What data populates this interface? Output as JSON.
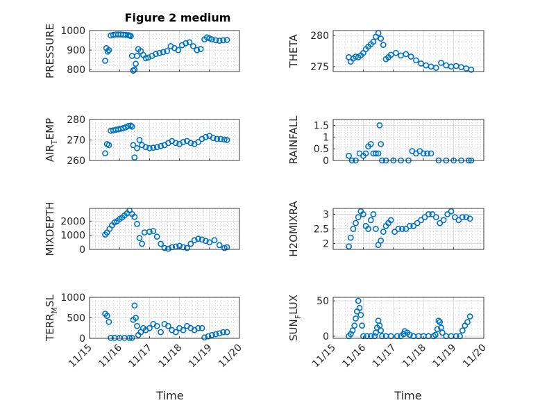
{
  "figure": {
    "title": "Figure 2 medium"
  },
  "colors": {
    "marker": "#0072BD",
    "axis": "#262626",
    "grid": "#d9d9d9",
    "minor_grid": "#b4b4b4"
  },
  "x_axis": {
    "label": "Time",
    "range": [
      "11/15",
      "11/20"
    ],
    "ticks": [
      "11/15",
      "11/16",
      "11/17",
      "11/18",
      "11/19",
      "11/20"
    ]
  },
  "chart_data": [
    {
      "type": "scatter",
      "id": "pressure",
      "title": "Figure 2 medium",
      "ylabel": "PRESSURE",
      "ylim": [
        790,
        1000
      ],
      "yticks": [
        "800",
        "900",
        "1000"
      ],
      "x": [
        "11/15 12:30",
        "11/15 13:30",
        "11/15 14:30",
        "11/15 15:30",
        "11/15 17:00",
        "11/15 19:00",
        "11/15 21:00",
        "11/15 23:00",
        "11/16 01:00",
        "11/16 03:00",
        "11/16 05:00",
        "11/16 07:00",
        "11/16 08:00",
        "11/16 09:00",
        "11/16 10:00",
        "11/16 11:00",
        "11/16 12:00",
        "11/16 13:00",
        "11/16 14:00",
        "11/16 15:00",
        "11/16 17:00",
        "11/16 19:00",
        "11/16 21:00",
        "11/16 23:00",
        "11/17 02:00",
        "11/17 05:00",
        "11/17 08:00",
        "11/17 11:00",
        "11/17 14:00",
        "11/17 17:00",
        "11/17 20:00",
        "11/17 23:00",
        "11/18 02:00",
        "11/18 05:00",
        "11/18 08:00",
        "11/18 11:00",
        "11/18 14:00",
        "11/18 17:00",
        "11/18 20:00",
        "11/18 22:00",
        "11/19 00:00",
        "11/19 02:00",
        "11/19 05:00",
        "11/19 08:00",
        "11/19 11:00",
        "11/19 14:00"
      ],
      "y": [
        845,
        910,
        892,
        900,
        975,
        978,
        980,
        980,
        980,
        979,
        978,
        977,
        975,
        972,
        870,
        795,
        800,
        830,
        870,
        905,
        895,
        875,
        858,
        862,
        870,
        880,
        885,
        890,
        895,
        920,
        910,
        900,
        925,
        935,
        940,
        920,
        900,
        905,
        955,
        965,
        960,
        955,
        950,
        948,
        950,
        952
      ]
    },
    {
      "type": "scatter",
      "id": "theta",
      "title": "",
      "ylabel": "THETA",
      "ylim": [
        274.2,
        280.8
      ],
      "yticks": [
        "275",
        "280"
      ],
      "x": [
        "11/15 12:30",
        "11/15 14:00",
        "11/15 16:00",
        "11/15 18:00",
        "11/15 20:00",
        "11/15 22:00",
        "11/16 00:00",
        "11/16 02:00",
        "11/16 04:00",
        "11/16 06:00",
        "11/16 08:00",
        "11/16 10:00",
        "11/16 12:00",
        "11/16 14:00",
        "11/16 16:00",
        "11/16 18:00",
        "11/16 20:00",
        "11/16 22:00",
        "11/17 02:00",
        "11/17 06:00",
        "11/17 10:00",
        "11/17 14:00",
        "11/17 18:00",
        "11/17 22:00",
        "11/18 02:00",
        "11/18 06:00",
        "11/18 10:00",
        "11/18 14:00",
        "11/18 18:00",
        "11/18 22:00",
        "11/19 02:00",
        "11/19 06:00",
        "11/19 10:00",
        "11/19 14:00"
      ],
      "y": [
        276.5,
        275.8,
        276.3,
        276.6,
        276.5,
        276.8,
        277.2,
        277.8,
        278.2,
        278.6,
        279.0,
        279.8,
        280.4,
        279.5,
        278.5,
        276.2,
        276.5,
        276.9,
        277.2,
        276.8,
        277.0,
        276.6,
        276.0,
        275.5,
        275.2,
        275.0,
        274.8,
        275.6,
        275.2,
        275.0,
        275.1,
        274.9,
        274.7,
        274.5
      ]
    },
    {
      "type": "scatter",
      "id": "air_temp",
      "title": "",
      "ylabel": "AIR_TEMP",
      "ylim": [
        260,
        280
      ],
      "yticks": [
        "260",
        "270",
        "280"
      ],
      "x": [
        "11/15 12:30",
        "11/15 14:00",
        "11/15 15:30",
        "11/15 17:00",
        "11/15 19:00",
        "11/15 21:00",
        "11/15 23:00",
        "11/16 01:00",
        "11/16 03:00",
        "11/16 05:00",
        "11/16 07:00",
        "11/16 09:00",
        "11/16 10:00",
        "11/16 11:00",
        "11/16 12:00",
        "11/16 14:00",
        "11/16 16:00",
        "11/16 18:00",
        "11/16 21:00",
        "11/17 00:00",
        "11/17 03:00",
        "11/17 06:00",
        "11/17 09:00",
        "11/17 12:00",
        "11/17 15:00",
        "11/17 18:00",
        "11/17 21:00",
        "11/18 00:00",
        "11/18 03:00",
        "11/18 06:00",
        "11/18 09:00",
        "11/18 12:00",
        "11/18 15:00",
        "11/18 18:00",
        "11/18 21:00",
        "11/19 00:00",
        "11/19 03:00",
        "11/19 06:00",
        "11/19 09:00",
        "11/19 12:00",
        "11/19 14:00"
      ],
      "y": [
        263.5,
        268.0,
        267.5,
        274.5,
        274.7,
        275.0,
        275.2,
        275.5,
        275.8,
        276.2,
        276.8,
        277.0,
        276.5,
        267.5,
        261.5,
        266.0,
        270.0,
        267.5,
        266.5,
        266.0,
        266.2,
        266.5,
        267.0,
        267.5,
        268.5,
        269.5,
        268.5,
        268.0,
        269.0,
        269.5,
        268.5,
        268.0,
        269.0,
        270.5,
        271.5,
        272.0,
        271.0,
        270.5,
        270.5,
        270.2,
        270.0
      ]
    },
    {
      "type": "scatter",
      "id": "rainfall",
      "title": "",
      "ylabel": "RAINFALL",
      "ylim": [
        0,
        1.75
      ],
      "yticks": [
        "0",
        "0.5",
        "1",
        "1.5"
      ],
      "x": [
        "11/15 12:30",
        "11/15 15:00",
        "11/15 18:00",
        "11/15 21:00",
        "11/16 00:00",
        "11/16 02:00",
        "11/16 04:00",
        "11/16 06:00",
        "11/16 08:00",
        "11/16 10:00",
        "11/16 12:00",
        "11/16 13:00",
        "11/16 14:00",
        "11/16 15:00",
        "11/16 18:00",
        "11/17 00:00",
        "11/17 06:00",
        "11/17 12:00",
        "11/17 15:00",
        "11/17 18:00",
        "11/17 21:00",
        "11/18 00:00",
        "11/18 03:00",
        "11/18 06:00",
        "11/18 12:00",
        "11/18 18:00",
        "11/19 00:00",
        "11/19 06:00",
        "11/19 12:00",
        "11/19 14:00"
      ],
      "y": [
        0.2,
        0.0,
        0.0,
        0.3,
        0.2,
        0.3,
        0.6,
        0.7,
        0.3,
        0.3,
        0.3,
        1.5,
        0.7,
        0.0,
        0.0,
        0.0,
        0.0,
        0.0,
        0.4,
        0.3,
        0.4,
        0.3,
        0.3,
        0.3,
        0.0,
        0.0,
        0.0,
        0.0,
        0.0,
        0.0
      ]
    },
    {
      "type": "scatter",
      "id": "mixdepth",
      "title": "",
      "ylabel": "MIXDEPTH",
      "ylim": [
        0,
        2900
      ],
      "yticks": [
        "0",
        "1000",
        "2000"
      ],
      "x": [
        "11/15 12:30",
        "11/15 14:00",
        "11/15 16:00",
        "11/15 18:00",
        "11/15 20:00",
        "11/15 22:00",
        "11/16 00:00",
        "11/16 02:00",
        "11/16 04:00",
        "11/16 06:00",
        "11/16 08:00",
        "11/16 10:00",
        "11/16 12:00",
        "11/16 14:00",
        "11/16 16:00",
        "11/16 18:00",
        "11/16 20:00",
        "11/17 00:00",
        "11/17 03:00",
        "11/17 06:00",
        "11/17 09:00",
        "11/17 12:00",
        "11/17 15:00",
        "11/17 18:00",
        "11/17 21:00",
        "11/18 00:00",
        "11/18 03:00",
        "11/18 06:00",
        "11/18 09:00",
        "11/18 12:00",
        "11/18 15:00",
        "11/18 18:00",
        "11/18 21:00",
        "11/19 00:00",
        "11/19 04:00",
        "11/19 08:00",
        "11/19 12:00",
        "11/19 14:00"
      ],
      "y": [
        1050,
        1200,
        1450,
        1700,
        1900,
        2000,
        2150,
        2250,
        2400,
        2550,
        2750,
        2500,
        2300,
        1800,
        800,
        400,
        1200,
        1250,
        1300,
        900,
        400,
        100,
        50,
        150,
        200,
        250,
        150,
        100,
        400,
        650,
        750,
        700,
        600,
        500,
        650,
        300,
        100,
        150
      ]
    },
    {
      "type": "scatter",
      "id": "h2omixra",
      "title": "",
      "ylabel": "H2OMIXRA",
      "ylim": [
        1.8,
        3.2
      ],
      "yticks": [
        "2",
        "2.5",
        "3"
      ],
      "x": [
        "11/15 12:30",
        "11/15 14:00",
        "11/15 16:00",
        "11/15 18:00",
        "11/15 20:00",
        "11/15 22:00",
        "11/16 00:00",
        "11/16 02:00",
        "11/16 04:00",
        "11/16 06:00",
        "11/16 08:00",
        "11/16 10:00",
        "11/16 12:00",
        "11/16 14:00",
        "11/16 16:00",
        "11/16 18:00",
        "11/16 20:00",
        "11/16 22:00",
        "11/17 01:00",
        "11/17 04:00",
        "11/17 07:00",
        "11/17 10:00",
        "11/17 13:00",
        "11/17 16:00",
        "11/17 19:00",
        "11/17 22:00",
        "11/18 01:00",
        "11/18 04:00",
        "11/18 07:00",
        "11/18 10:00",
        "11/18 13:00",
        "11/18 16:00",
        "11/18 19:00",
        "11/18 22:00",
        "11/19 01:00",
        "11/19 04:00",
        "11/19 07:00",
        "11/19 10:00",
        "11/19 13:00"
      ],
      "y": [
        1.9,
        2.2,
        2.5,
        2.7,
        2.9,
        3.1,
        3.0,
        2.6,
        2.5,
        2.8,
        3.0,
        2.5,
        1.95,
        2.1,
        2.4,
        2.6,
        2.7,
        2.8,
        2.4,
        2.5,
        2.5,
        2.5,
        2.6,
        2.6,
        2.7,
        2.8,
        2.9,
        3.0,
        3.0,
        2.9,
        2.7,
        2.8,
        3.0,
        3.1,
        2.9,
        2.8,
        2.9,
        2.9,
        2.85
      ]
    },
    {
      "type": "scatter",
      "id": "terr_msl",
      "title": "",
      "ylabel": "TERR_MSL",
      "ylim": [
        0,
        1000
      ],
      "yticks": [
        "0",
        "500",
        "1000"
      ],
      "x": [
        "11/15 12:30",
        "11/15 14:00",
        "11/15 15:30",
        "11/15 17:00",
        "11/15 20:00",
        "11/16 00:00",
        "11/16 04:00",
        "11/16 08:00",
        "11/16 10:00",
        "11/16 11:00",
        "11/16 12:00",
        "11/16 13:00",
        "11/16 14:00",
        "11/16 15:00",
        "11/16 17:00",
        "11/16 19:00",
        "11/16 21:00",
        "11/17 00:00",
        "11/17 03:00",
        "11/17 06:00",
        "11/17 09:00",
        "11/17 12:00",
        "11/17 15:00",
        "11/17 18:00",
        "11/17 21:00",
        "11/18 00:00",
        "11/18 03:00",
        "11/18 06:00",
        "11/18 09:00",
        "11/18 12:00",
        "11/18 15:00",
        "11/18 18:00",
        "11/18 20:00",
        "11/18 23:00",
        "11/19 02:00",
        "11/19 05:00",
        "11/19 08:00",
        "11/19 11:00",
        "11/19 14:00"
      ],
      "y": [
        600,
        550,
        400,
        10,
        10,
        10,
        10,
        10,
        10,
        450,
        800,
        500,
        300,
        80,
        150,
        250,
        200,
        250,
        350,
        300,
        150,
        350,
        300,
        200,
        150,
        250,
        200,
        300,
        250,
        200,
        250,
        250,
        20,
        50,
        80,
        100,
        120,
        150,
        150
      ]
    },
    {
      "type": "scatter",
      "id": "sun_flux",
      "title": "",
      "ylabel": "SUN_FLUX",
      "ylim": [
        -3,
        55
      ],
      "yticks": [
        "0",
        "50"
      ],
      "x": [
        "11/15 12:30",
        "11/15 14:00",
        "11/15 15:30",
        "11/15 17:00",
        "11/15 18:00",
        "11/15 19:00",
        "11/15 20:00",
        "11/15 21:00",
        "11/15 22:00",
        "11/15 23:00",
        "11/16 00:00",
        "11/16 03:00",
        "11/16 06:00",
        "11/16 09:00",
        "11/16 10:00",
        "11/16 11:00",
        "11/16 12:00",
        "11/16 13:00",
        "11/16 14:00",
        "11/16 15:00",
        "11/16 18:00",
        "11/16 22:00",
        "11/17 03:00",
        "11/17 06:00",
        "11/17 08:00",
        "11/17 09:00",
        "11/17 11:00",
        "11/17 13:00",
        "11/17 16:00",
        "11/17 20:00",
        "11/18 00:00",
        "11/18 04:00",
        "11/18 08:00",
        "11/18 09:30",
        "11/18 11:00",
        "11/18 12:00",
        "11/18 13:00",
        "11/18 14:00",
        "11/18 15:00",
        "11/18 18:00",
        "11/18 22:00",
        "11/19 02:00",
        "11/19 05:00",
        "11/19 07:00",
        "11/19 09:00",
        "11/19 11:00",
        "11/19 13:00"
      ],
      "y": [
        0,
        3,
        8,
        15,
        25,
        35,
        50,
        40,
        30,
        15,
        0,
        0,
        0,
        0,
        5,
        12,
        22,
        15,
        8,
        0,
        0,
        0,
        0,
        0,
        3,
        7,
        5,
        2,
        0,
        0,
        0,
        0,
        0,
        2,
        10,
        22,
        20,
        12,
        5,
        0,
        0,
        0,
        0,
        8,
        15,
        20,
        28
      ]
    }
  ]
}
